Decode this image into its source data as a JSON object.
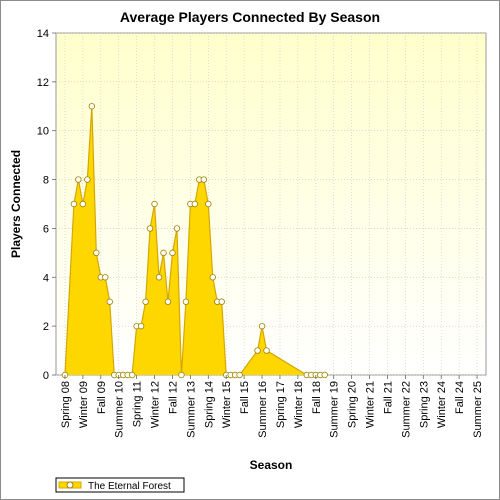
{
  "chart_data": {
    "type": "area",
    "title": "Average Players Connected By Season",
    "xlabel": "Season",
    "ylabel": "Players Connected",
    "ylim": [
      0,
      14
    ],
    "yticks": [
      0,
      2,
      4,
      6,
      8,
      10,
      12,
      14
    ],
    "grid": true,
    "legend_position": "bottom-left",
    "colors": {
      "fill": "#ffd700",
      "line": "#d4a800",
      "marker_fill": "#ffffff",
      "marker_stroke": "#a08000",
      "plot_bg_top": "#ffffcc",
      "plot_bg_bottom": "#ffffff"
    },
    "x_tick_labels": [
      "Spring 08",
      "Winter 09",
      "Fall 09",
      "Summer 10",
      "Spring 11",
      "Winter 12",
      "Fall 12",
      "Summer 13",
      "Spring 14",
      "Winter 15",
      "Fall 15",
      "Summer 16",
      "Spring 17",
      "Winter 18",
      "Fall 18",
      "Summer 19",
      "Spring 20",
      "Winter 21",
      "Fall 21",
      "Summer 22",
      "Spring 23",
      "Winter 24",
      "Fall 24",
      "Summer 25"
    ],
    "series": [
      {
        "name": "The Eternal Forest",
        "points": [
          [
            0.5,
            0
          ],
          [
            1.0,
            7
          ],
          [
            1.25,
            8
          ],
          [
            1.5,
            7
          ],
          [
            1.75,
            8
          ],
          [
            2.0,
            11
          ],
          [
            2.25,
            5
          ],
          [
            2.5,
            4
          ],
          [
            2.75,
            4
          ],
          [
            3.0,
            3
          ],
          [
            3.25,
            0
          ],
          [
            3.5,
            0
          ],
          [
            3.75,
            0
          ],
          [
            4.0,
            0
          ],
          [
            4.25,
            0
          ],
          [
            4.5,
            2
          ],
          [
            4.75,
            2
          ],
          [
            5.0,
            3
          ],
          [
            5.25,
            6
          ],
          [
            5.5,
            7
          ],
          [
            5.75,
            4
          ],
          [
            6.0,
            5
          ],
          [
            6.25,
            3
          ],
          [
            6.5,
            5
          ],
          [
            6.75,
            6
          ],
          [
            7.0,
            0
          ],
          [
            7.25,
            3
          ],
          [
            7.5,
            7
          ],
          [
            7.75,
            7
          ],
          [
            8.0,
            8
          ],
          [
            8.25,
            8
          ],
          [
            8.5,
            7
          ],
          [
            8.75,
            4
          ],
          [
            9.0,
            3
          ],
          [
            9.25,
            3
          ],
          [
            9.5,
            0
          ],
          [
            9.75,
            0
          ],
          [
            10.0,
            0
          ],
          [
            10.25,
            0
          ],
          [
            11.25,
            1
          ],
          [
            11.5,
            2
          ],
          [
            11.75,
            1
          ],
          [
            14.0,
            0
          ],
          [
            14.25,
            0
          ],
          [
            14.5,
            0
          ],
          [
            14.75,
            0
          ],
          [
            15.0,
            0
          ]
        ]
      }
    ]
  }
}
